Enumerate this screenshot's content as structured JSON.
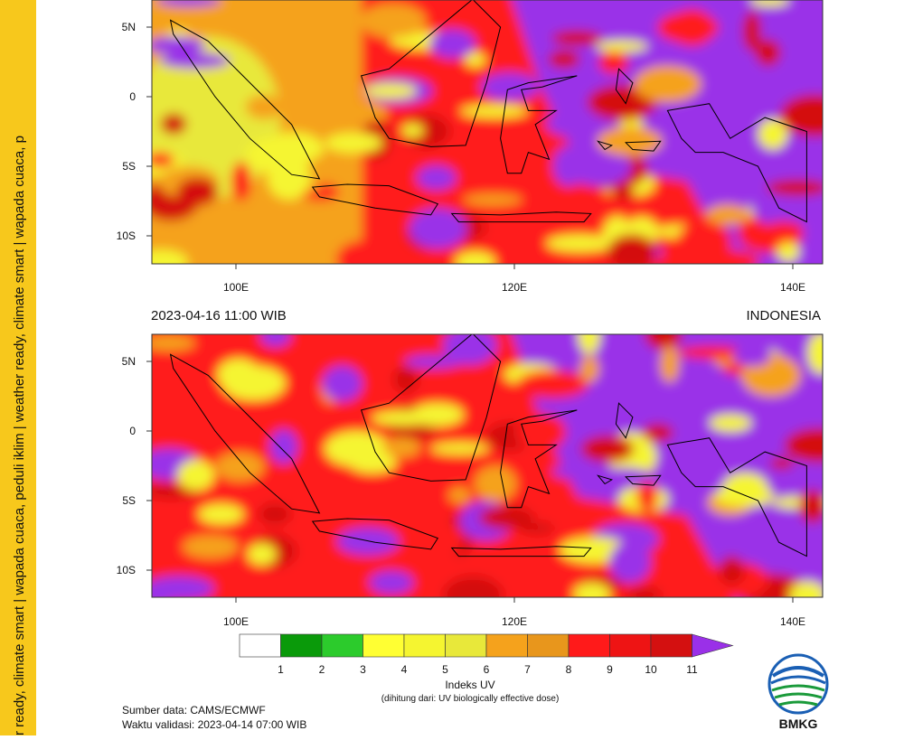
{
  "sidebar_text": "r ready, climate smart | wapada cuaca, peduli iklim | weather ready, climate smart | wapada cuaca, p",
  "maps": [
    {
      "lat_labels": [
        "5N",
        "0",
        "5S",
        "10S"
      ],
      "lon_labels": [
        "100E",
        "120E",
        "140E"
      ]
    },
    {
      "title_left": "2023-04-16  11:00 WIB",
      "title_right": "INDONESIA",
      "lat_labels": [
        "5N",
        "0",
        "5S",
        "10S"
      ],
      "lon_labels": [
        "100E",
        "120E",
        "140E"
      ]
    }
  ],
  "colorbar": {
    "colors": [
      "#ffffff",
      "#0a9a0a",
      "#2ccb2c",
      "#ffff33",
      "#f5f530",
      "#e8e83a",
      "#f5a21c",
      "#e8961c",
      "#ff1a1a",
      "#ee1414",
      "#d41010"
    ],
    "over_color": "#9a30e8",
    "labels": [
      1,
      2,
      3,
      4,
      5,
      6,
      7,
      8,
      9,
      10,
      11
    ],
    "title": "Indeks UV",
    "subtitle": "(dihitung dari: UV biologically effective dose)"
  },
  "footer": {
    "source": "Sumber data: CAMS/ECMWF",
    "validity": "Waktu validasi: 2023-04-14 07:00 WIB"
  },
  "logo": {
    "text": "BMKG"
  }
}
